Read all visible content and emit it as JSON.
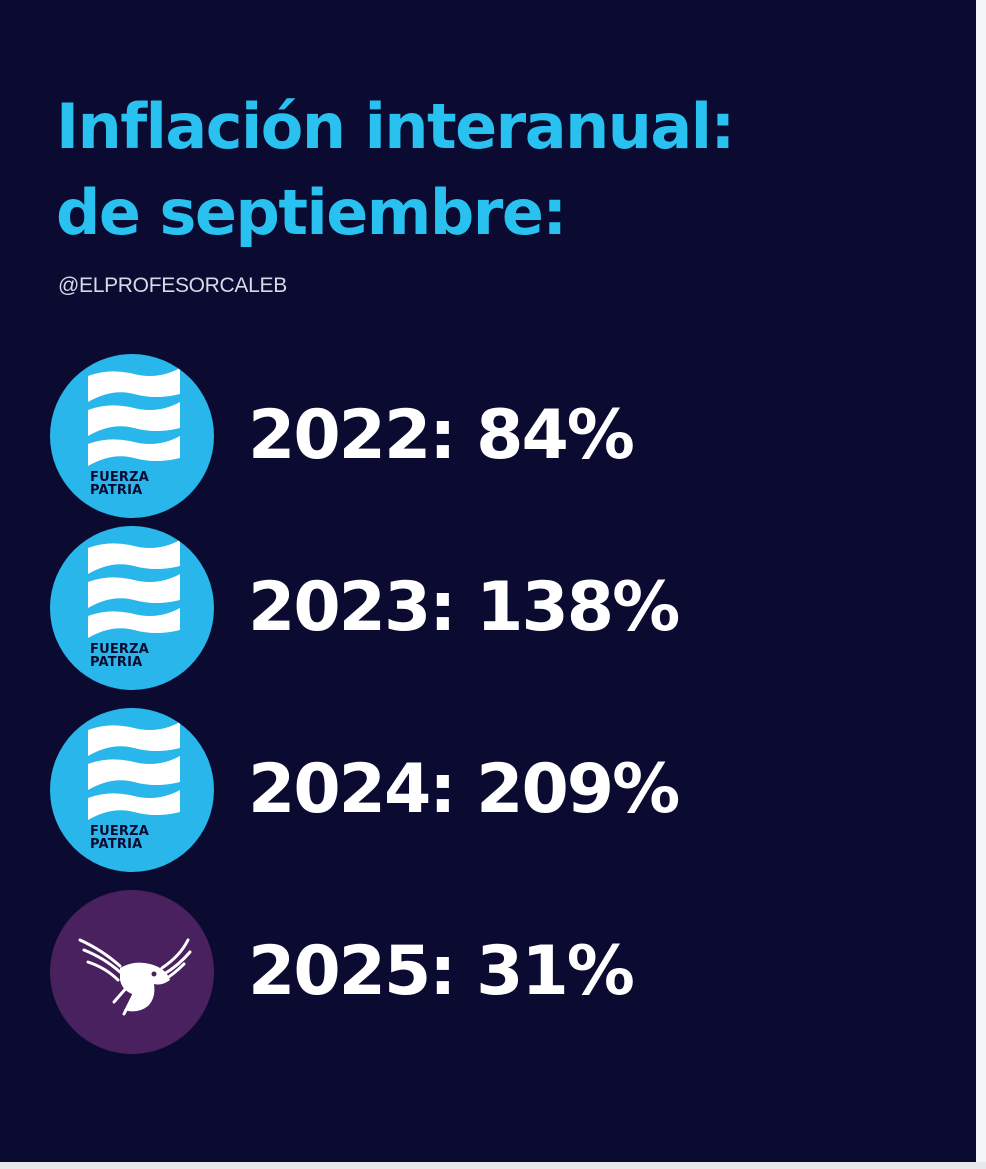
{
  "title": {
    "line1": "Inflación interanual:",
    "line2": "de septiembre:"
  },
  "handle": "@ELPROFESORCALEB",
  "colors": {
    "background": "#0b0b32",
    "title": "#29c2f0",
    "fuerza_patria_logo": "#29b6ea",
    "eagle_logo": "#4a215f",
    "value_text": "#ffffff"
  },
  "rows": [
    {
      "label": "2022: 84%",
      "year": 2022,
      "inflation_pct": 84,
      "logo": {
        "kind": "flag-stripes-icon",
        "line1": "FUERZA",
        "line2": "PATRIA"
      }
    },
    {
      "label": "2023: 138%",
      "year": 2023,
      "inflation_pct": 138,
      "logo": {
        "kind": "flag-stripes-icon",
        "line1": "FUERZA",
        "line2": "PATRIA"
      }
    },
    {
      "label": "2024: 209%",
      "year": 2024,
      "inflation_pct": 209,
      "logo": {
        "kind": "flag-stripes-icon",
        "line1": "FUERZA",
        "line2": "PATRIA"
      }
    },
    {
      "label": "2025: 31%",
      "year": 2025,
      "inflation_pct": 31,
      "logo": {
        "kind": "eagle-icon"
      }
    }
  ]
}
